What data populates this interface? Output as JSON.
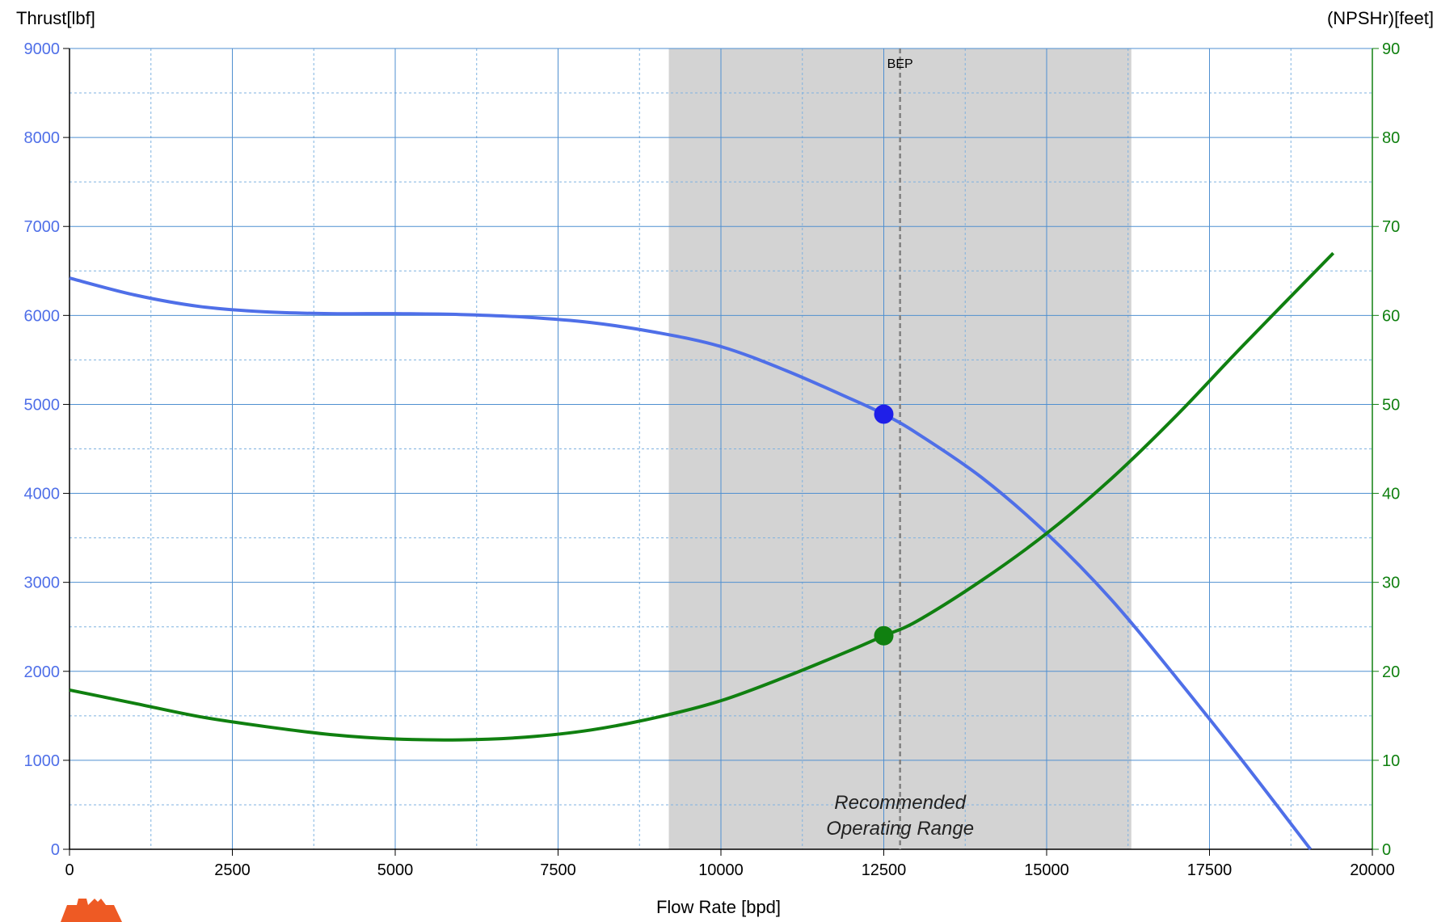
{
  "chart_data": {
    "type": "line",
    "xlabel": "Flow Rate [bpd]",
    "ylabel_left": "Thrust[lbf]",
    "ylabel_right": "(NPSHr)[feet]",
    "xlim": [
      0,
      20000
    ],
    "ylim_left": [
      0,
      9000
    ],
    "ylim_right": [
      0,
      90
    ],
    "x_ticks": [
      0,
      2500,
      5000,
      7500,
      10000,
      12500,
      15000,
      17500,
      20000
    ],
    "y_left_ticks": [
      0,
      1000,
      2000,
      3000,
      4000,
      5000,
      6000,
      7000,
      8000,
      9000
    ],
    "y_right_ticks": [
      0,
      10,
      20,
      30,
      40,
      50,
      60,
      70,
      80,
      90
    ],
    "grid": true,
    "recommended_range": {
      "x": [
        9200,
        16300
      ],
      "label_line1": "Recommended",
      "label_line2": "Operating Range",
      "color": "#d3d3d3"
    },
    "bep": {
      "x": 12750,
      "label": "BEP"
    },
    "series": [
      {
        "axis": "left",
        "color": "#4f6fe8",
        "x": [
          0,
          1000,
          2000,
          3000,
          4000,
          5000,
          6000,
          7000,
          8000,
          9000,
          10000,
          11000,
          12000,
          12500,
          13000,
          14000,
          15000,
          16000,
          17000,
          18000,
          19050
        ],
        "y": [
          6420,
          6230,
          6100,
          6040,
          6020,
          6020,
          6010,
          5980,
          5920,
          5810,
          5650,
          5380,
          5060,
          4890,
          4680,
          4180,
          3550,
          2800,
          1920,
          1000,
          0
        ]
      },
      {
        "axis": "right",
        "color": "#108010",
        "x": [
          0,
          1000,
          2000,
          3000,
          4000,
          5000,
          6000,
          7000,
          8000,
          9000,
          10000,
          11000,
          12000,
          12500,
          13000,
          14000,
          15000,
          16000,
          17000,
          18000,
          19400
        ],
        "y": [
          17.9,
          16.4,
          14.9,
          13.8,
          12.9,
          12.4,
          12.3,
          12.6,
          13.4,
          14.8,
          16.7,
          19.4,
          22.4,
          24.0,
          25.6,
          30.2,
          35.5,
          41.7,
          48.8,
          56.5,
          67.0
        ]
      }
    ],
    "markers": [
      {
        "axis": "left",
        "x": 12500,
        "y": 4890,
        "color": "#1f1fe8"
      },
      {
        "axis": "right",
        "x": 12500,
        "y": 24.0,
        "color": "#108010"
      }
    ]
  }
}
